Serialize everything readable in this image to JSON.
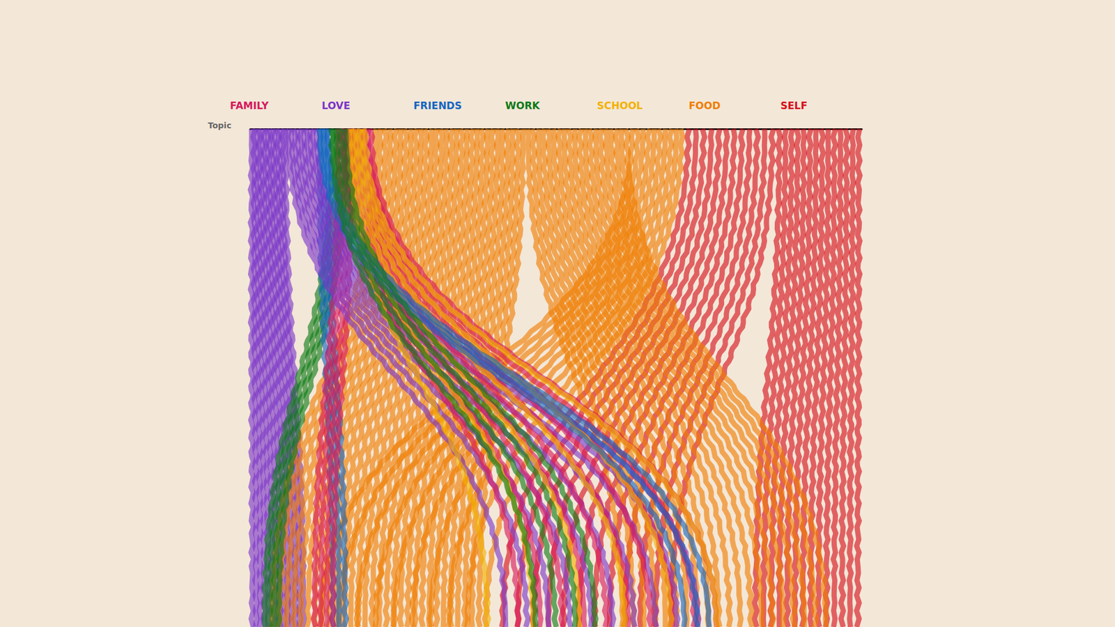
{
  "chart_data": {
    "type": "flow",
    "axis_label": "Topic",
    "topics": [
      {
        "name": "FAMILY",
        "color": "#d6185c"
      },
      {
        "name": "LOVE",
        "color": "#7b35c8"
      },
      {
        "name": "FRIENDS",
        "color": "#1565c0"
      },
      {
        "name": "WORK",
        "color": "#0d7a17"
      },
      {
        "name": "SCHOOL",
        "color": "#f2b100"
      },
      {
        "name": "FOOD",
        "color": "#ef7d00"
      },
      {
        "name": "SELF",
        "color": "#d50f1a"
      }
    ],
    "flows": [
      {
        "topic": "SELF",
        "start": [
          86,
          100
        ],
        "end": [
          82,
          100
        ],
        "strands": 14
      },
      {
        "topic": "LOVE",
        "start": [
          0,
          6
        ],
        "end": [
          0,
          9
        ],
        "strands": 14
      },
      {
        "topic": "FOOD",
        "start": [
          20,
          45
        ],
        "end": [
          3,
          38
        ],
        "strands": 30
      },
      {
        "topic": "SELF",
        "start": [
          71,
          86
        ],
        "end": [
          40,
          70
        ],
        "strands": 12
      },
      {
        "topic": "FOOD",
        "start": [
          62,
          71
        ],
        "end": [
          10,
          40
        ],
        "strands": 10
      },
      {
        "topic": "FOOD",
        "start": [
          45,
          62
        ],
        "end": [
          60,
          95
        ],
        "strands": 20
      },
      {
        "topic": "WORK",
        "start": [
          13,
          16
        ],
        "end": [
          2,
          5
        ],
        "strands": 4
      },
      {
        "topic": "FRIENDS",
        "start": [
          11,
          13
        ],
        "end": [
          13,
          16
        ],
        "strands": 3
      },
      {
        "topic": "FAMILY",
        "start": [
          14,
          17
        ],
        "end": [
          10,
          14
        ],
        "strands": 4
      },
      {
        "topic": "LOVE",
        "start": [
          6,
          11
        ],
        "end": [
          40,
          75
        ],
        "strands": 10
      },
      {
        "topic": "FAMILY",
        "start": [
          15,
          20
        ],
        "end": [
          42,
          78
        ],
        "strands": 10
      },
      {
        "topic": "SCHOOL",
        "start": [
          16,
          19
        ],
        "end": [
          35,
          80
        ],
        "strands": 6
      },
      {
        "topic": "FRIENDS",
        "start": [
          11,
          13
        ],
        "end": [
          70,
          76
        ],
        "strands": 3
      },
      {
        "topic": "WORK",
        "start": [
          13,
          16
        ],
        "end": [
          45,
          58
        ],
        "strands": 4
      }
    ],
    "xlim": [
      0,
      100
    ],
    "ylim": [
      0,
      1
    ],
    "tick_labels": false
  }
}
